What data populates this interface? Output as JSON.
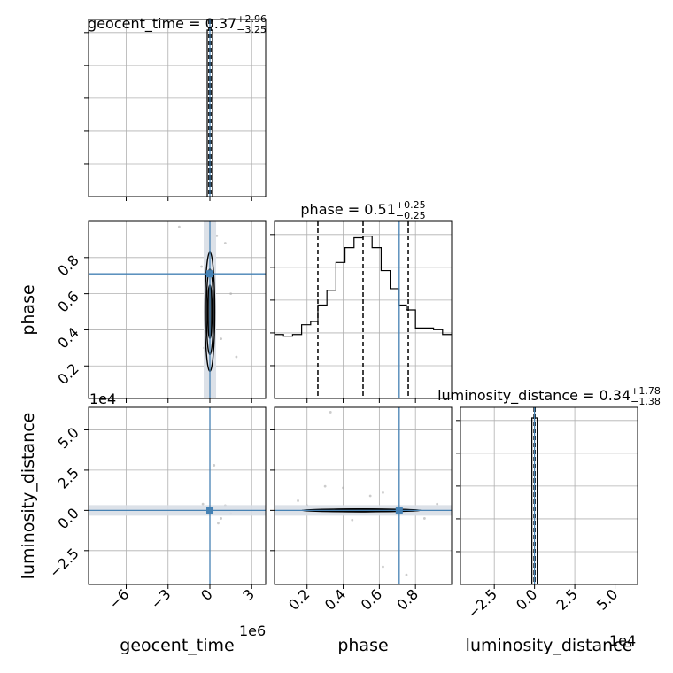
{
  "chart_data": {
    "type": "corner",
    "parameters": [
      "geocent_time",
      "phase",
      "luminosity_distance"
    ],
    "truth_color": "#4682b4",
    "titles": [
      {
        "name": "geocent_time",
        "median": "0.37",
        "plus": "+2.96",
        "minus": "−3.25"
      },
      {
        "name": "phase",
        "median": "0.51",
        "plus": "+0.25",
        "minus": "−0.25"
      },
      {
        "name": "luminosity_distance",
        "median": "0.34",
        "plus": "+1.78",
        "minus": "−1.38"
      }
    ],
    "axes": {
      "geocent_time": {
        "label": "geocent_time",
        "range": [
          -8.7,
          4.0
        ],
        "offset_text": "1e6",
        "ticks": [
          {
            "v": -6,
            "t": "−6"
          },
          {
            "v": -3,
            "t": "−3"
          },
          {
            "v": 0,
            "t": "0"
          },
          {
            "v": 3,
            "t": "3"
          }
        ]
      },
      "phase": {
        "label": "phase",
        "range": [
          0.02,
          1.0
        ],
        "offset_text": "",
        "ticks": [
          {
            "v": 0.2,
            "t": "0.2"
          },
          {
            "v": 0.4,
            "t": "0.4"
          },
          {
            "v": 0.6,
            "t": "0.6"
          },
          {
            "v": 0.8,
            "t": "0.8"
          }
        ]
      },
      "luminosity_distance": {
        "label": "luminosity_distance",
        "range": [
          -4.6,
          6.4
        ],
        "offset_text": "1e4",
        "ticks": [
          {
            "v": -2.5,
            "t": "−2.5"
          },
          {
            "v": 0,
            "t": "0.0"
          },
          {
            "v": 2.5,
            "t": "2.5"
          },
          {
            "v": 5,
            "t": "5.0"
          }
        ]
      }
    },
    "truths": {
      "geocent_time": 0.0,
      "phase": 0.71,
      "luminosity_distance": 0.0
    },
    "quantiles": {
      "geocent_time": [
        -0.07,
        0.0,
        0.07
      ],
      "phase": [
        0.26,
        0.51,
        0.76
      ],
      "luminosity_distance": [
        -0.03,
        0.0,
        0.03
      ]
    },
    "histograms": {
      "geocent_time": {
        "bins": [
          [
            -0.15,
            0.15,
            1.0
          ]
        ],
        "ymax": 1.0
      },
      "phase": {
        "edges": [
          0.02,
          0.07,
          0.12,
          0.17,
          0.22,
          0.26,
          0.31,
          0.36,
          0.41,
          0.46,
          0.51,
          0.56,
          0.61,
          0.66,
          0.71,
          0.75,
          0.8,
          0.85,
          0.9,
          0.95,
          1.0
        ],
        "counts": [
          0.39,
          0.38,
          0.39,
          0.45,
          0.47,
          0.57,
          0.66,
          0.83,
          0.92,
          0.98,
          0.99,
          0.92,
          0.78,
          0.67,
          0.57,
          0.54,
          0.43,
          0.43,
          0.42,
          0.39
        ],
        "ymax": 1.08
      },
      "luminosity_distance": {
        "bins": [
          [
            -0.15,
            0.15,
            1.0
          ]
        ],
        "ymax": 1.0
      }
    },
    "contours_2d": [
      {
        "x": "geocent_time",
        "y": "phase",
        "center": [
          0.0,
          0.5
        ],
        "half_widths": [
          0.35,
          0.33
        ]
      },
      {
        "x": "geocent_time",
        "y": "luminosity_distance",
        "center": [
          0.0,
          0.0
        ],
        "half_widths": [
          0.12,
          0.06
        ]
      },
      {
        "x": "phase",
        "y": "luminosity_distance",
        "center": [
          0.5,
          0.0
        ],
        "half_widths": [
          0.33,
          0.08
        ]
      }
    ],
    "scatter_samples": [
      {
        "x": "geocent_time",
        "y": "phase",
        "points": [
          [
            -2.2,
            0.97
          ],
          [
            1.1,
            0.88
          ],
          [
            1.9,
            0.25
          ],
          [
            1.5,
            0.6
          ],
          [
            -0.6,
            0.75
          ],
          [
            0.8,
            0.35
          ],
          [
            -0.4,
            0.3
          ],
          [
            0.5,
            0.92
          ]
        ]
      },
      {
        "x": "geocent_time",
        "y": "luminosity_distance",
        "points": [
          [
            1.5,
            -0.2
          ],
          [
            0.8,
            -0.5
          ],
          [
            0.3,
            2.8
          ],
          [
            -0.5,
            0.4
          ],
          [
            1.1,
            0.3
          ],
          [
            0.6,
            -0.8
          ]
        ]
      },
      {
        "x": "phase",
        "y": "luminosity_distance",
        "points": [
          [
            0.33,
            6.1
          ],
          [
            0.62,
            -3.5
          ],
          [
            0.75,
            -4.0
          ],
          [
            0.92,
            0.4
          ],
          [
            0.62,
            1.1
          ],
          [
            0.4,
            1.4
          ],
          [
            0.15,
            0.6
          ],
          [
            0.85,
            -0.5
          ],
          [
            0.3,
            1.5
          ],
          [
            0.55,
            0.9
          ],
          [
            0.45,
            -0.6
          ],
          [
            0.2,
            0.3
          ]
        ]
      }
    ],
    "grid": true
  }
}
